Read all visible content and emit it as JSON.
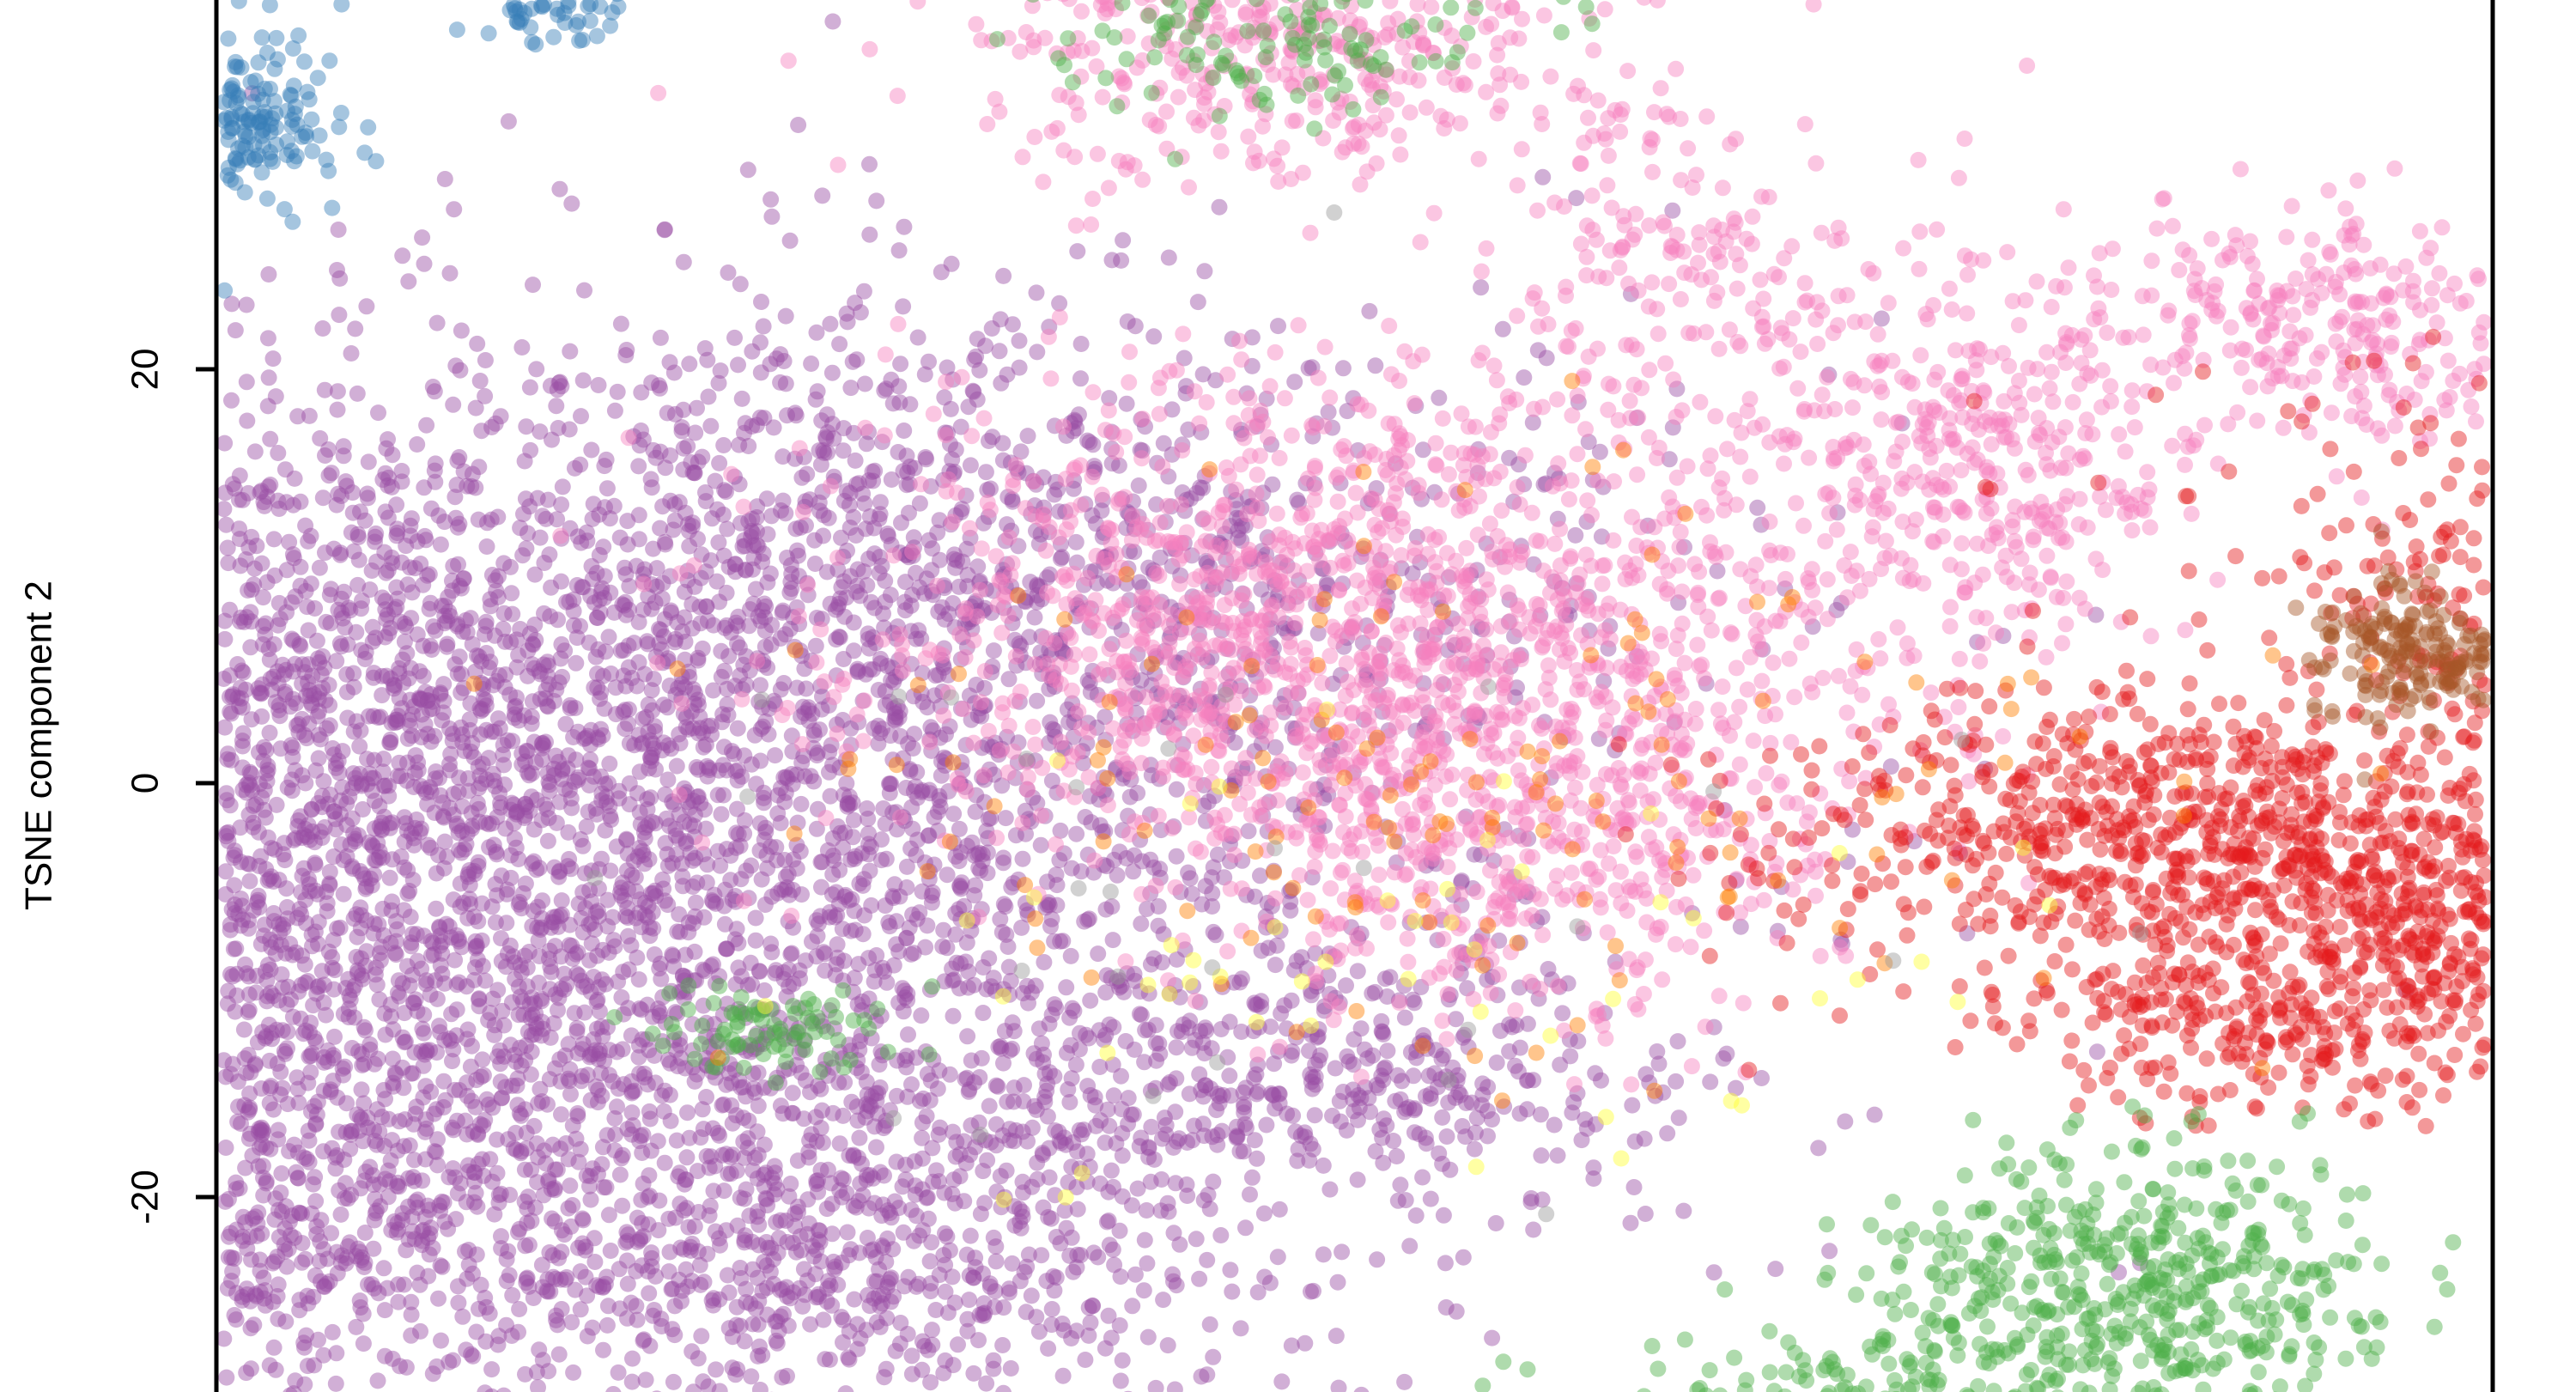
{
  "chart_data": {
    "type": "scatter",
    "ylabel": "TSNE component 2",
    "yticks": [
      20,
      0,
      -20
    ],
    "ylim": [
      -30.5,
      38.5
    ],
    "xlim": [
      -34,
      53
    ],
    "grid": false,
    "legend": "none",
    "point_alpha": 0.45,
    "series": [
      {
        "color": "#984EA3",
        "approx_points": 9000,
        "regions": [
          {
            "center": [
              -13,
              -3
            ],
            "spread": [
              12,
              11
            ],
            "n": 5200
          },
          {
            "center": [
              -24,
              4
            ],
            "spread": [
              6,
              8
            ],
            "n": 900
          },
          {
            "center": [
              -20,
              -20
            ],
            "spread": [
              4,
              5
            ],
            "n": 600
          },
          {
            "center": [
              -5,
              -22
            ],
            "spread": [
              6,
              5
            ],
            "n": 900
          },
          {
            "center": [
              -1,
              11
            ],
            "spread": [
              8,
              6
            ],
            "n": 900
          },
          {
            "center": [
              9,
              -14
            ],
            "spread": [
              4,
              3
            ],
            "n": 300
          }
        ]
      },
      {
        "color": "#F781BF",
        "approx_points": 3200,
        "regions": [
          {
            "center": [
              9,
              8
            ],
            "spread": [
              6,
              6
            ],
            "n": 1300
          },
          {
            "center": [
              13,
              -2
            ],
            "spread": [
              4,
              5
            ],
            "n": 500
          },
          {
            "center": [
              24,
              16
            ],
            "spread": [
              3,
              5
            ],
            "n": 400
          },
          {
            "center": [
              33,
              22
            ],
            "spread": [
              3,
              3
            ],
            "n": 300
          },
          {
            "center": [
              8,
              35
            ],
            "spread": [
              4,
              3
            ],
            "n": 400
          },
          {
            "center": [
              17,
              25
            ],
            "spread": [
              2,
              4
            ],
            "n": 150
          }
        ]
      },
      {
        "color": "#E41A1C",
        "approx_points": 3000,
        "regions": [
          {
            "center": [
              38,
              -5
            ],
            "spread": [
              7,
              4
            ],
            "n": 1500
          },
          {
            "center": [
              42,
              9
            ],
            "spread": [
              6,
              5
            ],
            "n": 700
          },
          {
            "center": [
              27,
              -2
            ],
            "spread": [
              4,
              3
            ],
            "n": 400
          },
          {
            "center": [
              31,
              -12
            ],
            "spread": [
              3,
              2
            ],
            "n": 200
          }
        ]
      },
      {
        "color": "#4DAF4A",
        "approx_points": 900,
        "regions": [
          {
            "center": [
              28,
              -24
            ],
            "spread": [
              3,
              3
            ],
            "n": 450
          },
          {
            "center": [
              23,
              -30
            ],
            "spread": [
              4,
              2
            ],
            "n": 250
          },
          {
            "center": [
              -5,
              -12
            ],
            "spread": [
              1.5,
              1.2
            ],
            "n": 80
          },
          {
            "center": [
              7,
              36
            ],
            "spread": [
              3,
              2
            ],
            "n": 120
          }
        ]
      },
      {
        "color": "#377EB8",
        "approx_points": 320,
        "regions": [
          {
            "center": [
              -18,
              32
            ],
            "spread": [
              1.5,
              2.5
            ],
            "n": 260
          },
          {
            "center": [
              -10,
              37
            ],
            "spread": [
              1,
              0.6
            ],
            "n": 40
          }
        ]
      },
      {
        "color": "#A65628",
        "approx_points": 240,
        "regions": [
          {
            "center": [
              34.5,
              6.5
            ],
            "spread": [
              1.3,
              1.8
            ],
            "n": 200
          },
          {
            "center": [
              39,
              15
            ],
            "spread": [
              1.2,
              1.5
            ],
            "n": 40
          }
        ]
      },
      {
        "color": "#FF7F00",
        "approx_points": 150,
        "regions": [
          {
            "center": [
              12,
              0
            ],
            "spread": [
              8,
              7
            ],
            "n": 150
          }
        ]
      },
      {
        "color": "#FFFF33",
        "approx_points": 50,
        "regions": [
          {
            "center": [
              10,
              -8
            ],
            "spread": [
              7,
              6
            ],
            "n": 50
          }
        ]
      },
      {
        "color": "#999999",
        "approx_points": 30,
        "regions": [
          {
            "center": [
              8,
              -2
            ],
            "spread": [
              10,
              10
            ],
            "n": 30
          }
        ]
      }
    ]
  }
}
